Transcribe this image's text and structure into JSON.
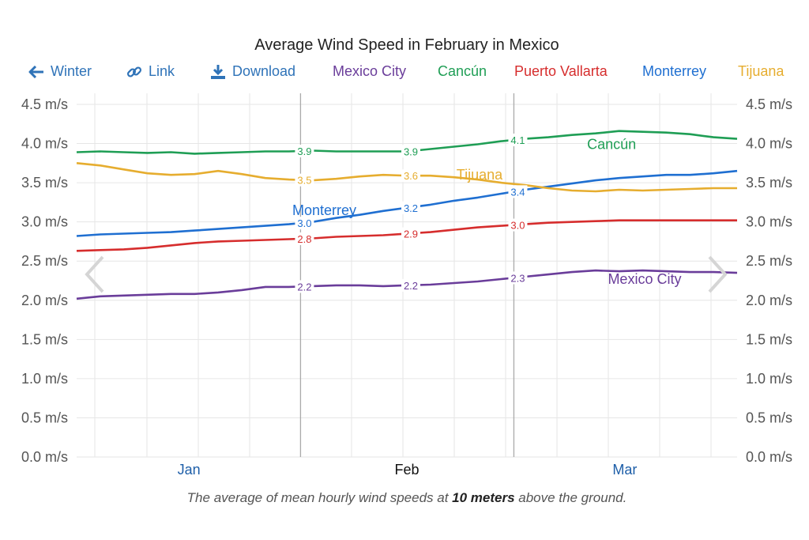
{
  "toolbar": {
    "winter_label": "Winter",
    "link_label": "Link",
    "download_label": "Download",
    "icons": {
      "winter": "arrow-left-icon",
      "link": "link-icon",
      "download": "download-icon"
    },
    "link_color": "#2f73b8"
  },
  "caption": {
    "prefix": "The average of mean hourly wind speeds at ",
    "emphasis": "10 meters",
    "suffix": " above the ground."
  },
  "navigation": {
    "prev": "chevron-left-icon",
    "next": "chevron-right-icon"
  },
  "chart_data": {
    "type": "line",
    "title": "Average Wind Speed in February in Mexico",
    "xlabel": "",
    "ylabel": "",
    "y_unit": "m/s",
    "ylim": [
      0,
      4.5
    ],
    "yticks": [
      "0.0 m/s",
      "0.5 m/s",
      "1.0 m/s",
      "1.5 m/s",
      "2.0 m/s",
      "2.5 m/s",
      "3.0 m/s",
      "3.5 m/s",
      "4.0 m/s",
      "4.5 m/s"
    ],
    "ytick_values": [
      0,
      0.5,
      1.0,
      1.5,
      2.0,
      2.5,
      3.0,
      3.5,
      4.0,
      4.5
    ],
    "x_domain": [
      0,
      1
    ],
    "month_ticks": [
      {
        "label": "Jan",
        "at": 0.17,
        "highlight": false
      },
      {
        "label": "Feb",
        "at": 0.5,
        "highlight": true
      },
      {
        "label": "Mar",
        "at": 0.83,
        "highlight": false
      }
    ],
    "period_boundaries": [
      0.339,
      0.662
    ],
    "grid": true,
    "legend_placement": "top",
    "series": [
      {
        "name": "Mexico City",
        "color": "#6a3d9a",
        "label_text": "Mexico City",
        "label_at": [
          0.86,
          2.27
        ],
        "values": [
          2.02,
          2.05,
          2.06,
          2.07,
          2.08,
          2.08,
          2.1,
          2.13,
          2.17,
          2.17,
          2.18,
          2.19,
          2.19,
          2.18,
          2.19,
          2.2,
          2.22,
          2.24,
          2.27,
          2.3,
          2.33,
          2.36,
          2.38,
          2.37,
          2.38,
          2.37,
          2.36,
          2.36,
          2.35
        ]
      },
      {
        "name": "Cancún",
        "color": "#1f9e55",
        "label_text": "Cancún",
        "label_at": [
          0.81,
          3.99
        ],
        "values": [
          3.89,
          3.9,
          3.89,
          3.88,
          3.89,
          3.87,
          3.88,
          3.89,
          3.9,
          3.9,
          3.91,
          3.9,
          3.9,
          3.9,
          3.9,
          3.93,
          3.96,
          3.99,
          4.03,
          4.06,
          4.08,
          4.11,
          4.13,
          4.16,
          4.15,
          4.14,
          4.12,
          4.08,
          4.06
        ]
      },
      {
        "name": "Puerto Vallarta",
        "color": "#d62d2d",
        "label_text": "",
        "label_at": null,
        "values": [
          2.63,
          2.64,
          2.65,
          2.67,
          2.7,
          2.73,
          2.75,
          2.76,
          2.77,
          2.78,
          2.79,
          2.81,
          2.82,
          2.83,
          2.85,
          2.87,
          2.9,
          2.93,
          2.95,
          2.97,
          2.99,
          3.0,
          3.01,
          3.02,
          3.02,
          3.02,
          3.02,
          3.02,
          3.02
        ]
      },
      {
        "name": "Monterrey",
        "color": "#1f6fd1",
        "label_text": "Monterrey",
        "label_at": [
          0.375,
          3.15
        ],
        "values": [
          2.82,
          2.84,
          2.85,
          2.86,
          2.87,
          2.89,
          2.91,
          2.93,
          2.95,
          2.97,
          3.0,
          3.05,
          3.09,
          3.14,
          3.18,
          3.22,
          3.27,
          3.31,
          3.36,
          3.41,
          3.45,
          3.49,
          3.53,
          3.56,
          3.58,
          3.6,
          3.6,
          3.62,
          3.65
        ]
      },
      {
        "name": "Tijuana",
        "color": "#e6ad2f",
        "label_text": "Tijuana",
        "label_at": [
          0.61,
          3.6
        ],
        "values": [
          3.75,
          3.72,
          3.67,
          3.62,
          3.6,
          3.61,
          3.65,
          3.61,
          3.56,
          3.54,
          3.53,
          3.55,
          3.58,
          3.6,
          3.59,
          3.59,
          3.57,
          3.54,
          3.5,
          3.47,
          3.43,
          3.4,
          3.39,
          3.41,
          3.4,
          3.41,
          3.42,
          3.43,
          3.43
        ]
      }
    ],
    "data_labels": [
      {
        "series": "Cancún",
        "at": 0.339,
        "text": "3.9"
      },
      {
        "series": "Cancún",
        "at": 0.5,
        "text": "3.9"
      },
      {
        "series": "Cancún",
        "at": 0.662,
        "text": "4.1"
      },
      {
        "series": "Tijuana",
        "at": 0.339,
        "text": "3.5"
      },
      {
        "series": "Tijuana",
        "at": 0.5,
        "text": "3.6"
      },
      {
        "series": "Monterrey",
        "at": 0.339,
        "text": "3.0"
      },
      {
        "series": "Monterrey",
        "at": 0.5,
        "text": "3.2"
      },
      {
        "series": "Monterrey",
        "at": 0.662,
        "text": "3.4"
      },
      {
        "series": "Puerto Vallarta",
        "at": 0.339,
        "text": "2.8"
      },
      {
        "series": "Puerto Vallarta",
        "at": 0.5,
        "text": "2.9"
      },
      {
        "series": "Puerto Vallarta",
        "at": 0.662,
        "text": "3.0"
      },
      {
        "series": "Mexico City",
        "at": 0.339,
        "text": "2.2"
      },
      {
        "series": "Mexico City",
        "at": 0.5,
        "text": "2.2"
      },
      {
        "series": "Mexico City",
        "at": 0.662,
        "text": "2.3"
      }
    ]
  }
}
